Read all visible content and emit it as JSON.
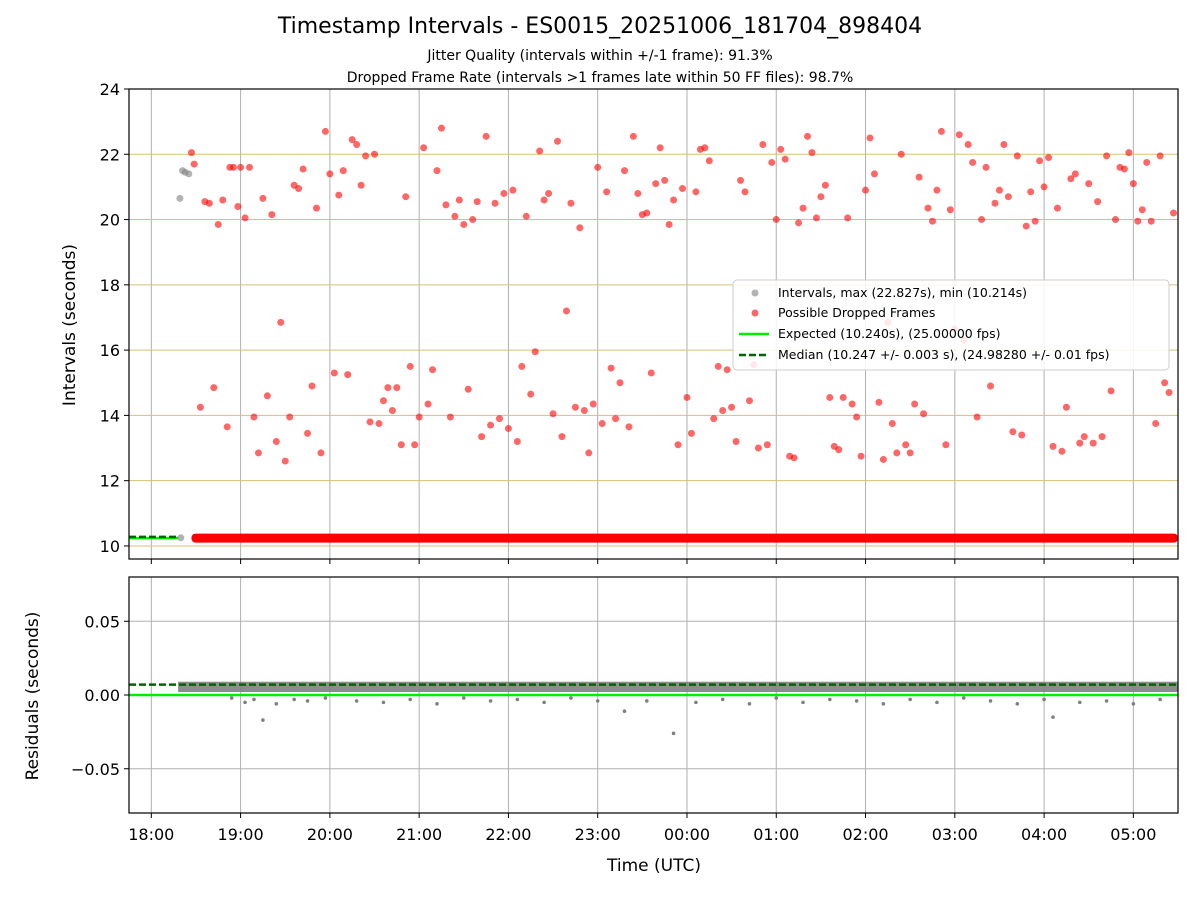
{
  "title": "Timestamp Intervals - ES0015_20251006_181704_898404",
  "subtitle1": "Jitter Quality (intervals within +/-1 frame): 91.3%",
  "subtitle2": "Dropped Frame Rate (intervals >1 frames late within 50 FF files): 98.7%",
  "colors": {
    "intervals": "#808080",
    "dropped": "#ff0000",
    "expected": "#00ee00",
    "median": "#006400",
    "hgrid_top": "#d8c07a",
    "grid": "#b0b0b0"
  },
  "chart_data": [
    {
      "type": "scatter",
      "xlabel": "",
      "ylabel": "Intervals (seconds)",
      "xlim_hours": [
        17.75,
        29.5
      ],
      "ylim": [
        9.6,
        24.0
      ],
      "yticks": [
        "10",
        "12",
        "14",
        "16",
        "18",
        "20",
        "22",
        "24"
      ],
      "ytick_values": [
        10,
        12,
        14,
        16,
        18,
        20,
        22,
        24
      ],
      "grid": true,
      "legend_position": "right",
      "legend": [
        "Intervals, max (22.827s), min (10.214s)",
        "Possible Dropped Frames",
        "Expected (10.240s), (25.00000 fps)",
        "Median (10.247 +/- 0.003 s), (24.98280 +/- 0.01 fps)"
      ],
      "expected_value": 10.24,
      "median_value": 10.247,
      "baseline_band": {
        "x_start": 18.3,
        "x_end": 29.5,
        "value": 10.24
      },
      "gray_points": [
        [
          18.32,
          20.65
        ],
        [
          18.35,
          21.5
        ],
        [
          18.38,
          21.45
        ],
        [
          18.42,
          21.4
        ],
        [
          18.33,
          10.25
        ]
      ],
      "dropped_points": [
        [
          18.45,
          22.05
        ],
        [
          18.48,
          21.7
        ],
        [
          18.55,
          14.25
        ],
        [
          18.6,
          20.55
        ],
        [
          18.65,
          20.5
        ],
        [
          18.7,
          14.85
        ],
        [
          18.75,
          19.85
        ],
        [
          18.8,
          20.6
        ],
        [
          18.85,
          13.65
        ],
        [
          18.88,
          21.6
        ],
        [
          18.92,
          21.6
        ],
        [
          18.97,
          20.4
        ],
        [
          19.0,
          21.6
        ],
        [
          19.05,
          20.05
        ],
        [
          19.1,
          21.6
        ],
        [
          19.15,
          13.95
        ],
        [
          19.2,
          12.85
        ],
        [
          19.25,
          20.65
        ],
        [
          19.3,
          14.6
        ],
        [
          19.35,
          20.15
        ],
        [
          19.4,
          13.2
        ],
        [
          19.45,
          16.85
        ],
        [
          19.5,
          12.6
        ],
        [
          19.55,
          13.95
        ],
        [
          19.6,
          21.05
        ],
        [
          19.65,
          20.95
        ],
        [
          19.7,
          21.55
        ],
        [
          19.75,
          13.45
        ],
        [
          19.8,
          14.9
        ],
        [
          19.85,
          20.35
        ],
        [
          19.9,
          12.85
        ],
        [
          19.95,
          22.7
        ],
        [
          20.0,
          21.4
        ],
        [
          20.05,
          15.3
        ],
        [
          20.1,
          20.75
        ],
        [
          20.15,
          21.5
        ],
        [
          20.2,
          15.25
        ],
        [
          20.25,
          22.45
        ],
        [
          20.3,
          22.3
        ],
        [
          20.35,
          21.05
        ],
        [
          20.4,
          21.95
        ],
        [
          20.45,
          13.8
        ],
        [
          20.5,
          22.0
        ],
        [
          20.55,
          13.75
        ],
        [
          20.6,
          14.45
        ],
        [
          20.65,
          14.85
        ],
        [
          20.7,
          14.15
        ],
        [
          20.75,
          14.85
        ],
        [
          20.8,
          13.1
        ],
        [
          20.85,
          20.7
        ],
        [
          20.9,
          15.5
        ],
        [
          20.95,
          13.1
        ],
        [
          21.0,
          13.95
        ],
        [
          21.05,
          22.2
        ],
        [
          21.1,
          14.35
        ],
        [
          21.15,
          15.4
        ],
        [
          21.2,
          21.5
        ],
        [
          21.25,
          22.8
        ],
        [
          21.3,
          20.45
        ],
        [
          21.35,
          13.95
        ],
        [
          21.4,
          20.1
        ],
        [
          21.45,
          20.6
        ],
        [
          21.5,
          19.85
        ],
        [
          21.55,
          14.8
        ],
        [
          21.6,
          20.0
        ],
        [
          21.65,
          20.55
        ],
        [
          21.7,
          13.35
        ],
        [
          21.75,
          22.55
        ],
        [
          21.8,
          13.7
        ],
        [
          21.85,
          20.5
        ],
        [
          21.9,
          13.9
        ],
        [
          21.95,
          20.8
        ],
        [
          22.0,
          13.6
        ],
        [
          22.05,
          20.9
        ],
        [
          22.1,
          13.2
        ],
        [
          22.15,
          15.5
        ],
        [
          22.2,
          20.1
        ],
        [
          22.25,
          14.65
        ],
        [
          22.3,
          15.95
        ],
        [
          22.35,
          22.1
        ],
        [
          22.4,
          20.6
        ],
        [
          22.45,
          20.8
        ],
        [
          22.5,
          14.05
        ],
        [
          22.55,
          22.4
        ],
        [
          22.6,
          13.35
        ],
        [
          22.65,
          17.2
        ],
        [
          22.7,
          20.5
        ],
        [
          22.75,
          14.25
        ],
        [
          22.8,
          19.75
        ],
        [
          22.85,
          14.15
        ],
        [
          22.9,
          12.85
        ],
        [
          22.95,
          14.35
        ],
        [
          23.0,
          21.6
        ],
        [
          23.05,
          13.75
        ],
        [
          23.1,
          20.85
        ],
        [
          23.15,
          15.45
        ],
        [
          23.2,
          13.9
        ],
        [
          23.25,
          15.0
        ],
        [
          23.3,
          21.5
        ],
        [
          23.35,
          13.65
        ],
        [
          23.4,
          22.55
        ],
        [
          23.45,
          20.8
        ],
        [
          23.5,
          20.15
        ],
        [
          23.55,
          20.2
        ],
        [
          23.6,
          15.3
        ],
        [
          23.65,
          21.1
        ],
        [
          23.7,
          22.2
        ],
        [
          23.75,
          21.2
        ],
        [
          23.8,
          19.85
        ],
        [
          23.85,
          20.6
        ],
        [
          23.9,
          13.1
        ],
        [
          23.95,
          20.95
        ],
        [
          24.0,
          14.55
        ],
        [
          24.05,
          13.45
        ],
        [
          24.1,
          20.85
        ],
        [
          24.15,
          22.15
        ],
        [
          24.2,
          22.2
        ],
        [
          24.25,
          21.8
        ],
        [
          24.3,
          13.9
        ],
        [
          24.35,
          15.5
        ],
        [
          24.4,
          14.15
        ],
        [
          24.45,
          15.4
        ],
        [
          24.5,
          14.25
        ],
        [
          24.55,
          13.2
        ],
        [
          24.6,
          21.2
        ],
        [
          24.65,
          20.85
        ],
        [
          24.7,
          14.45
        ],
        [
          24.75,
          15.55
        ],
        [
          24.8,
          13.0
        ],
        [
          24.85,
          22.3
        ],
        [
          24.9,
          13.1
        ],
        [
          24.95,
          21.75
        ],
        [
          25.0,
          20.0
        ],
        [
          25.05,
          22.15
        ],
        [
          25.1,
          21.85
        ],
        [
          25.15,
          12.75
        ],
        [
          25.2,
          12.7
        ],
        [
          25.25,
          19.9
        ],
        [
          25.3,
          20.35
        ],
        [
          25.35,
          22.55
        ],
        [
          25.4,
          22.05
        ],
        [
          25.45,
          20.05
        ],
        [
          25.5,
          20.7
        ],
        [
          25.55,
          21.05
        ],
        [
          25.6,
          14.55
        ],
        [
          25.65,
          13.05
        ],
        [
          25.7,
          12.95
        ],
        [
          25.75,
          14.55
        ],
        [
          25.8,
          20.05
        ],
        [
          25.85,
          14.35
        ],
        [
          25.9,
          13.95
        ],
        [
          25.95,
          12.75
        ],
        [
          26.0,
          20.9
        ],
        [
          26.05,
          22.5
        ],
        [
          26.1,
          21.4
        ],
        [
          26.15,
          14.4
        ],
        [
          26.2,
          12.65
        ],
        [
          26.25,
          16.85
        ],
        [
          26.3,
          13.75
        ],
        [
          26.35,
          12.85
        ],
        [
          26.4,
          22.0
        ],
        [
          26.45,
          13.1
        ],
        [
          26.5,
          12.85
        ],
        [
          26.55,
          14.35
        ],
        [
          26.6,
          21.3
        ],
        [
          26.65,
          14.05
        ],
        [
          26.7,
          20.35
        ],
        [
          26.75,
          19.95
        ],
        [
          26.8,
          20.9
        ],
        [
          26.85,
          22.7
        ],
        [
          26.9,
          13.1
        ],
        [
          26.95,
          20.3
        ],
        [
          27.0,
          16.65
        ],
        [
          27.05,
          22.6
        ],
        [
          27.1,
          16.3
        ],
        [
          27.15,
          22.3
        ],
        [
          27.2,
          21.75
        ],
        [
          27.25,
          13.95
        ],
        [
          27.3,
          20.0
        ],
        [
          27.35,
          21.6
        ],
        [
          27.4,
          14.9
        ],
        [
          27.45,
          20.5
        ],
        [
          27.5,
          20.9
        ],
        [
          27.55,
          22.3
        ],
        [
          27.6,
          20.7
        ],
        [
          27.65,
          13.5
        ],
        [
          27.7,
          21.95
        ],
        [
          27.75,
          13.4
        ],
        [
          27.8,
          19.8
        ],
        [
          27.85,
          20.85
        ],
        [
          27.9,
          19.95
        ],
        [
          27.95,
          21.8
        ],
        [
          28.0,
          21.0
        ],
        [
          28.05,
          21.9
        ],
        [
          28.1,
          13.05
        ],
        [
          28.15,
          20.35
        ],
        [
          28.2,
          12.9
        ],
        [
          28.25,
          14.25
        ],
        [
          28.3,
          21.25
        ],
        [
          28.35,
          21.4
        ],
        [
          28.4,
          13.15
        ],
        [
          28.45,
          13.35
        ],
        [
          28.5,
          21.1
        ],
        [
          28.55,
          13.15
        ],
        [
          28.6,
          20.55
        ],
        [
          28.65,
          13.35
        ],
        [
          28.7,
          21.95
        ],
        [
          28.75,
          14.75
        ],
        [
          28.8,
          20.0
        ],
        [
          28.85,
          21.6
        ],
        [
          28.9,
          21.55
        ],
        [
          28.95,
          22.05
        ],
        [
          29.0,
          21.1
        ],
        [
          29.05,
          19.95
        ],
        [
          29.1,
          20.3
        ],
        [
          29.15,
          21.75
        ],
        [
          29.2,
          19.95
        ],
        [
          29.25,
          13.75
        ],
        [
          29.3,
          21.95
        ],
        [
          29.35,
          15.0
        ],
        [
          29.4,
          14.7
        ],
        [
          29.45,
          20.2
        ]
      ]
    },
    {
      "type": "scatter",
      "xlabel": "Time (UTC)",
      "ylabel": "Residuals (seconds)",
      "xlim_hours": [
        17.75,
        29.5
      ],
      "ylim": [
        -0.08,
        0.08
      ],
      "yticks": [
        "−0.05",
        "0.00",
        "0.05"
      ],
      "ytick_values": [
        -0.05,
        0.0,
        0.05
      ],
      "xticks": [
        "18:00",
        "19:00",
        "20:00",
        "21:00",
        "22:00",
        "23:00",
        "00:00",
        "01:00",
        "02:00",
        "03:00",
        "04:00",
        "05:00"
      ],
      "xtick_values": [
        18,
        19,
        20,
        21,
        22,
        23,
        24,
        25,
        26,
        27,
        28,
        29
      ],
      "grid": true,
      "expected_value": 0.0,
      "median_value": 0.007,
      "residual_band": {
        "x_start": 18.3,
        "x_end": 29.5,
        "top": 0.009,
        "bottom": 0.002
      },
      "outliers": [
        [
          18.9,
          -0.002
        ],
        [
          19.05,
          -0.005
        ],
        [
          19.15,
          -0.003
        ],
        [
          19.25,
          -0.017
        ],
        [
          19.4,
          -0.006
        ],
        [
          19.6,
          -0.003
        ],
        [
          19.75,
          -0.004
        ],
        [
          19.95,
          -0.002
        ],
        [
          20.3,
          -0.004
        ],
        [
          20.6,
          -0.005
        ],
        [
          20.9,
          -0.003
        ],
        [
          21.2,
          -0.006
        ],
        [
          21.5,
          -0.002
        ],
        [
          21.8,
          -0.004
        ],
        [
          22.1,
          -0.003
        ],
        [
          22.4,
          -0.005
        ],
        [
          22.7,
          -0.002
        ],
        [
          23.0,
          -0.004
        ],
        [
          23.3,
          -0.011
        ],
        [
          23.55,
          -0.004
        ],
        [
          23.85,
          -0.026
        ],
        [
          24.1,
          -0.005
        ],
        [
          24.4,
          -0.003
        ],
        [
          24.7,
          -0.006
        ],
        [
          25.0,
          -0.002
        ],
        [
          25.3,
          -0.005
        ],
        [
          25.6,
          -0.003
        ],
        [
          25.9,
          -0.004
        ],
        [
          26.2,
          -0.006
        ],
        [
          26.5,
          -0.003
        ],
        [
          26.8,
          -0.005
        ],
        [
          27.1,
          -0.002
        ],
        [
          27.4,
          -0.004
        ],
        [
          27.7,
          -0.006
        ],
        [
          28.0,
          -0.003
        ],
        [
          28.1,
          -0.015
        ],
        [
          28.4,
          -0.005
        ],
        [
          28.7,
          -0.004
        ],
        [
          29.0,
          -0.006
        ],
        [
          29.3,
          -0.003
        ]
      ]
    }
  ]
}
